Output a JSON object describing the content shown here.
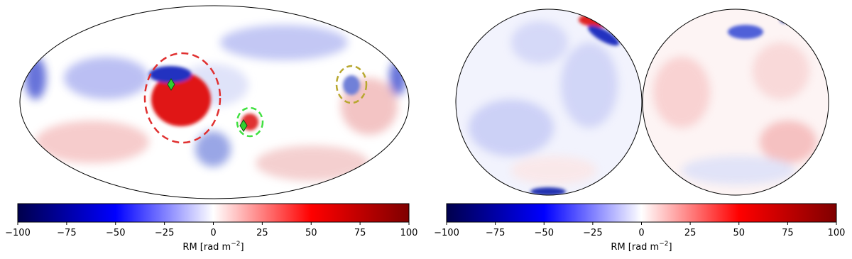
{
  "colorbars": [
    {
      "clim": [
        -100,
        100
      ],
      "ticks": [
        {
          "value": -100,
          "label": "−100"
        },
        {
          "value": -75,
          "label": "−75"
        },
        {
          "value": -50,
          "label": "−50"
        },
        {
          "value": -25,
          "label": "−25"
        },
        0,
        25,
        50,
        75,
        100
      ],
      "label": {
        "text": "RM [rad m",
        "sup": "−2",
        "close": "]"
      }
    },
    {
      "clim": [
        -100,
        100
      ],
      "ticks": [
        {
          "value": -100,
          "label": "−100"
        },
        {
          "value": -75,
          "label": "−75"
        },
        {
          "value": -50,
          "label": "−50"
        },
        {
          "value": -25,
          "label": "−25"
        },
        0,
        25,
        50,
        75,
        100
      ],
      "label": {
        "text": "RM [rad m",
        "sup": "−2",
        "close": "]"
      }
    }
  ]
}
